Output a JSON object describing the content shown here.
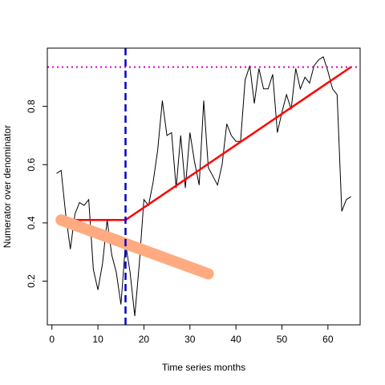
{
  "chart_data": {
    "type": "line",
    "title": "",
    "xlabel": "Time series months",
    "ylabel": "Numerator over denominator",
    "xlim": [
      -1,
      67
    ],
    "ylim": [
      0.05,
      1.0
    ],
    "xticks": [
      0,
      10,
      20,
      30,
      40,
      50,
      60
    ],
    "yticks": [
      0.2,
      0.4,
      0.6,
      0.8
    ],
    "grid": false,
    "legend": "none",
    "series": [
      {
        "kind": "observed-line",
        "color": "#000000",
        "x": [
          1,
          2,
          3,
          4,
          5,
          6,
          7,
          8,
          9,
          10,
          11,
          12,
          13,
          14,
          15,
          16,
          17,
          18,
          19,
          20,
          21,
          22,
          23,
          24,
          25,
          26,
          27,
          28,
          29,
          30,
          31,
          32,
          33,
          34,
          35,
          36,
          37,
          38,
          39,
          40,
          41,
          42,
          43,
          44,
          45,
          46,
          47,
          48,
          49,
          50,
          51,
          52,
          53,
          54,
          55,
          56,
          57,
          58,
          59,
          60,
          61,
          62,
          63,
          64,
          65
        ],
        "y": [
          0.57,
          0.58,
          0.43,
          0.31,
          0.43,
          0.47,
          0.46,
          0.48,
          0.24,
          0.17,
          0.26,
          0.41,
          0.29,
          0.23,
          0.12,
          0.33,
          0.23,
          0.08,
          0.26,
          0.48,
          0.46,
          0.54,
          0.65,
          0.82,
          0.7,
          0.71,
          0.52,
          0.7,
          0.52,
          0.71,
          0.61,
          0.53,
          0.82,
          0.59,
          0.56,
          0.53,
          0.6,
          0.74,
          0.7,
          0.68,
          0.68,
          0.89,
          0.94,
          0.81,
          0.93,
          0.86,
          0.86,
          0.91,
          0.71,
          0.78,
          0.84,
          0.79,
          0.93,
          0.86,
          0.9,
          0.88,
          0.94,
          0.96,
          0.97,
          0.92,
          0.86,
          0.84,
          0.44,
          0.48,
          0.49
        ]
      },
      {
        "kind": "fitted-segmented",
        "color": "#ff0000",
        "x": [
          1,
          16,
          65
        ],
        "y": [
          0.41,
          0.41,
          0.935
        ]
      },
      {
        "kind": "counterfactual-trend",
        "color": "#ffaa80",
        "x": [
          2,
          34
        ],
        "y": [
          0.41,
          0.225
        ]
      }
    ],
    "reference_lines": [
      {
        "orientation": "vertical",
        "value": 16,
        "color": "#0000cc",
        "style": "dashed"
      },
      {
        "orientation": "horizontal",
        "value": 0.935,
        "color": "#cc00cc",
        "style": "dotted"
      }
    ]
  }
}
